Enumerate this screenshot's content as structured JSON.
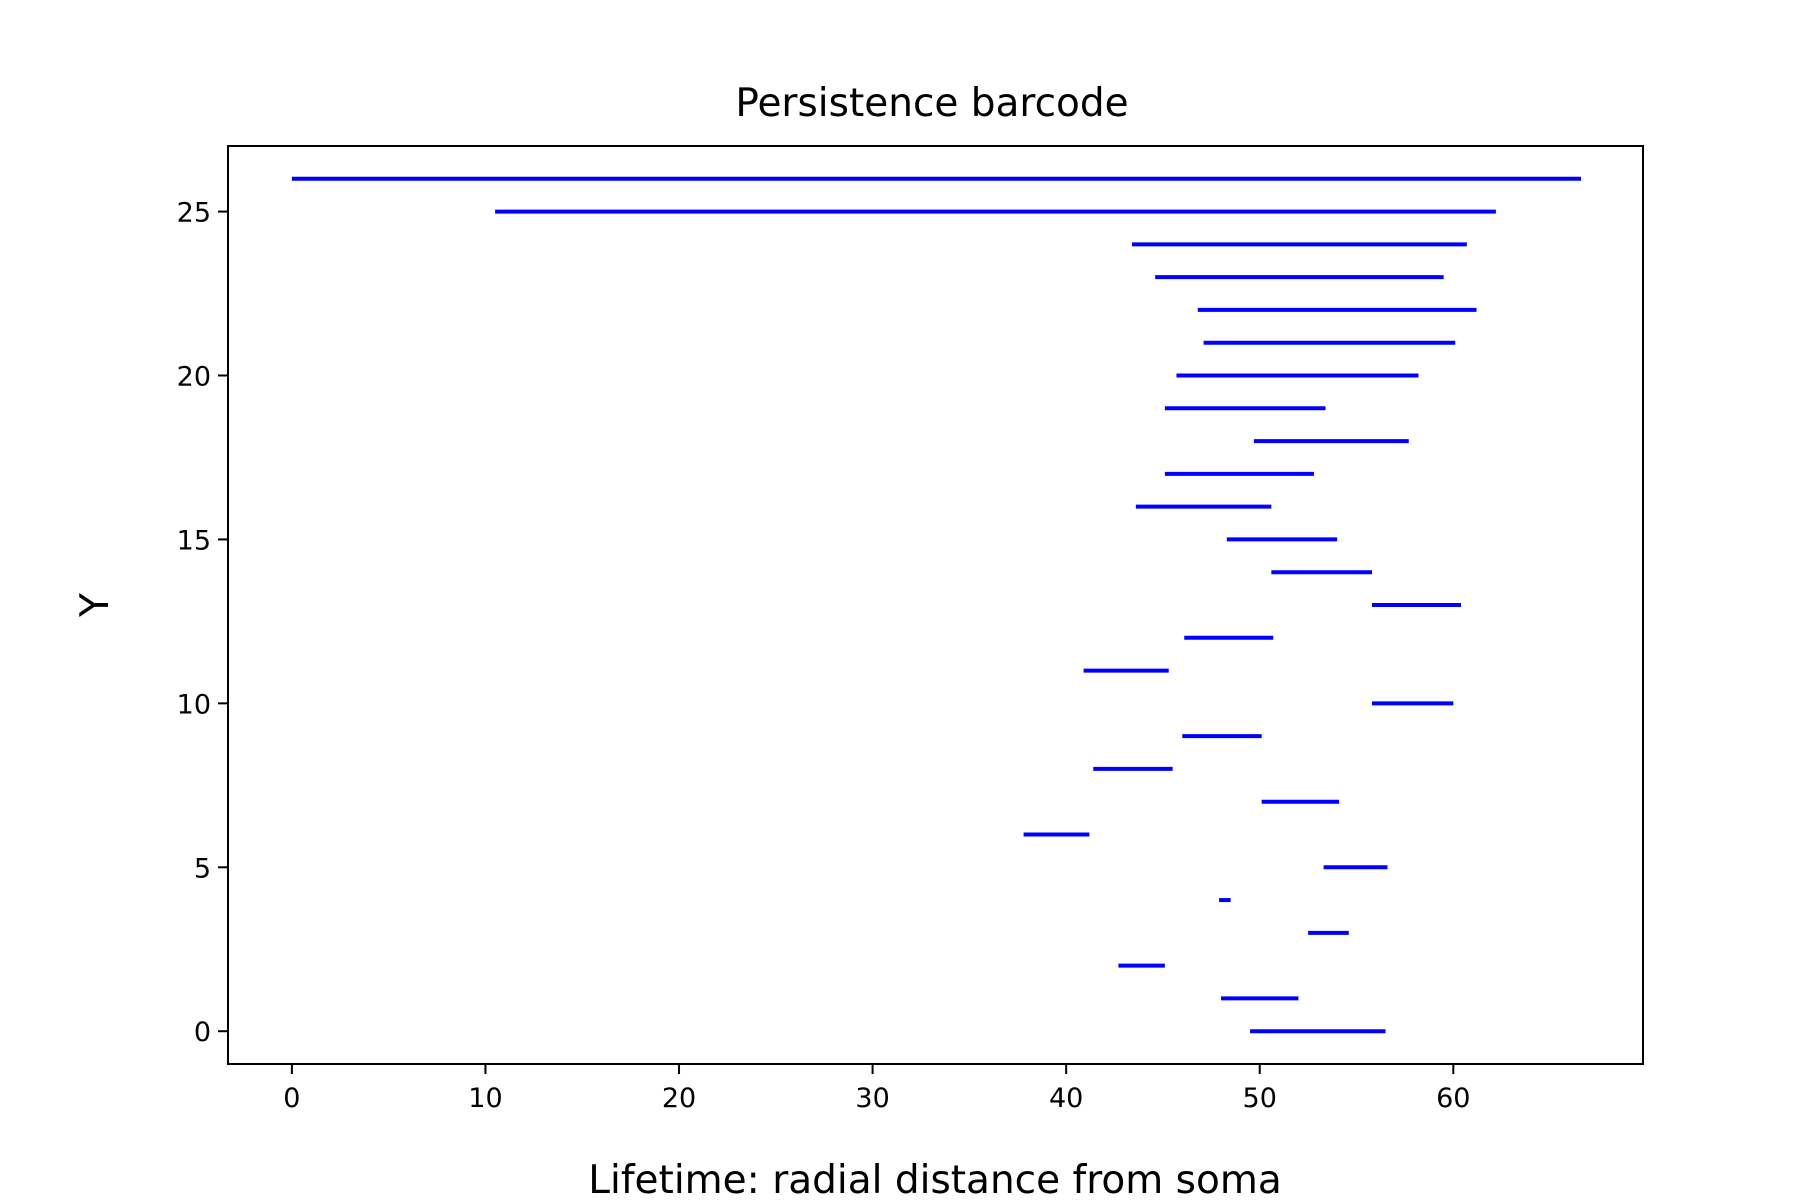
{
  "chart_data": {
    "type": "barcode",
    "title": "Persistence barcode",
    "xlabel": "Lifetime: radial distance from soma",
    "ylabel": "Y",
    "xlim": [
      -3.3,
      69.8
    ],
    "ylim": [
      -1,
      27
    ],
    "xticks": [
      0,
      10,
      20,
      30,
      40,
      50,
      60
    ],
    "yticks": [
      0,
      5,
      10,
      15,
      20,
      25
    ],
    "bar_color": "#0000ff",
    "bars": [
      {
        "y": 0,
        "start": 49.5,
        "end": 56.5
      },
      {
        "y": 1,
        "start": 48.0,
        "end": 52.0
      },
      {
        "y": 2,
        "start": 42.7,
        "end": 45.1
      },
      {
        "y": 3,
        "start": 52.5,
        "end": 54.6
      },
      {
        "y": 4,
        "start": 47.9,
        "end": 48.5
      },
      {
        "y": 5,
        "start": 53.3,
        "end": 56.6
      },
      {
        "y": 6,
        "start": 37.8,
        "end": 41.2
      },
      {
        "y": 7,
        "start": 50.1,
        "end": 54.1
      },
      {
        "y": 8,
        "start": 41.4,
        "end": 45.5
      },
      {
        "y": 9,
        "start": 46.0,
        "end": 50.1
      },
      {
        "y": 10,
        "start": 55.8,
        "end": 60.0
      },
      {
        "y": 11,
        "start": 40.9,
        "end": 45.3
      },
      {
        "y": 12,
        "start": 46.1,
        "end": 50.7
      },
      {
        "y": 13,
        "start": 55.8,
        "end": 60.4
      },
      {
        "y": 14,
        "start": 50.6,
        "end": 55.8
      },
      {
        "y": 15,
        "start": 48.3,
        "end": 54.0
      },
      {
        "y": 16,
        "start": 43.6,
        "end": 50.6
      },
      {
        "y": 17,
        "start": 45.1,
        "end": 52.8
      },
      {
        "y": 18,
        "start": 49.7,
        "end": 57.7
      },
      {
        "y": 19,
        "start": 45.1,
        "end": 53.4
      },
      {
        "y": 20,
        "start": 45.7,
        "end": 58.2
      },
      {
        "y": 21,
        "start": 47.1,
        "end": 60.1
      },
      {
        "y": 22,
        "start": 46.8,
        "end": 61.2
      },
      {
        "y": 23,
        "start": 44.6,
        "end": 59.5
      },
      {
        "y": 24,
        "start": 43.4,
        "end": 60.7
      },
      {
        "y": 25,
        "start": 10.5,
        "end": 62.2
      },
      {
        "y": 26,
        "start": 0.0,
        "end": 66.6
      }
    ]
  }
}
